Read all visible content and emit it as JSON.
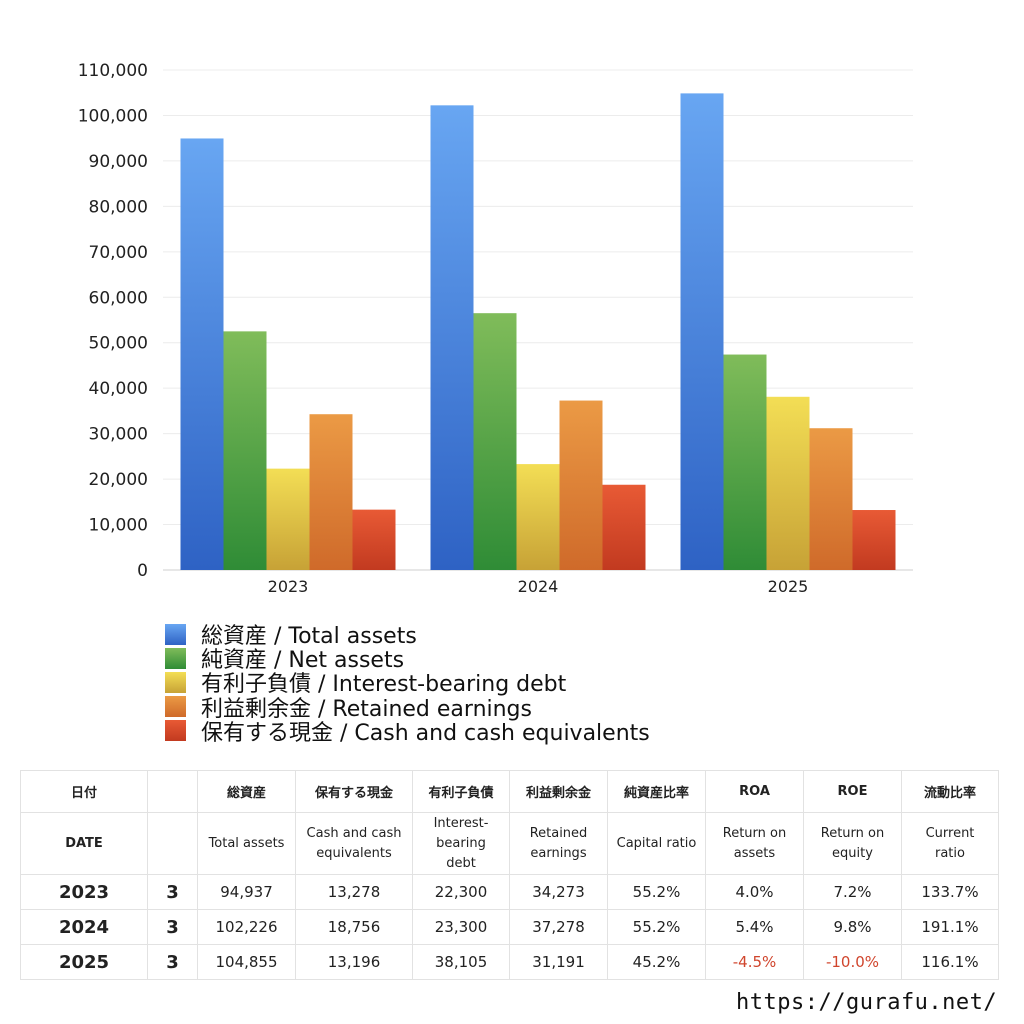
{
  "chart_data": {
    "type": "bar",
    "categories": [
      "2023",
      "2024",
      "2025"
    ],
    "ylim": [
      0,
      110000
    ],
    "yticks": [
      "0",
      "10,000",
      "20,000",
      "30,000",
      "40,000",
      "50,000",
      "60,000",
      "70,000",
      "80,000",
      "90,000",
      "100,000",
      "110,000"
    ],
    "grid": true,
    "legend_placement": "bottom",
    "series": [
      {
        "name": "総資産 / Total assets",
        "values": [
          94937,
          102226,
          104855
        ],
        "color_top": "#68a6f2",
        "color_bottom": "#2e62c4"
      },
      {
        "name": "純資産 / Net assets",
        "values": [
          52500,
          56500,
          47400
        ],
        "color_top": "#80bc5a",
        "color_bottom": "#2f8c36"
      },
      {
        "name": "有利子負債 / Interest-bearing debt",
        "values": [
          22300,
          23300,
          38105
        ],
        "color_top": "#f3de55",
        "color_bottom": "#c7a236"
      },
      {
        "name": "利益剰余金 / Retained earnings",
        "values": [
          34273,
          37278,
          31191
        ],
        "color_top": "#eb9a45",
        "color_bottom": "#cf6a2a"
      },
      {
        "name": "保有する現金 /  Cash and cash equivalents",
        "values": [
          13278,
          18756,
          13196
        ],
        "color_top": "#e85a35",
        "color_bottom": "#c23a20"
      }
    ]
  },
  "table": {
    "header_jp": [
      "日付",
      "",
      "総資産",
      "保有する現金",
      "有利子負債",
      "利益剰余金",
      "純資産比率",
      "ROA",
      "ROE",
      "流動比率"
    ],
    "header_en": [
      "DATE",
      "",
      "Total assets",
      "Cash and cash equivalents",
      "Interest-bearing debt",
      "Retained earnings",
      "Capital ratio",
      "Return on assets",
      "Return on equity",
      "Current ratio"
    ],
    "rows": [
      {
        "year": "2023",
        "month": "3",
        "cells": [
          "94,937",
          "13,278",
          "22,300",
          "34,273",
          "55.2%",
          "4.0%",
          "7.2%",
          "133.7%"
        ],
        "neg": [
          false,
          false,
          false,
          false,
          false,
          false,
          false,
          false
        ]
      },
      {
        "year": "2024",
        "month": "3",
        "cells": [
          "102,226",
          "18,756",
          "23,300",
          "37,278",
          "55.2%",
          "5.4%",
          "9.8%",
          "191.1%"
        ],
        "neg": [
          false,
          false,
          false,
          false,
          false,
          false,
          false,
          false
        ]
      },
      {
        "year": "2025",
        "month": "3",
        "cells": [
          "104,855",
          "13,196",
          "38,105",
          "31,191",
          "45.2%",
          "-4.5%",
          "-10.0%",
          "116.1%"
        ],
        "neg": [
          false,
          false,
          false,
          false,
          false,
          true,
          true,
          false
        ]
      }
    ]
  },
  "footer": {
    "url": "https://gurafu.net/"
  }
}
